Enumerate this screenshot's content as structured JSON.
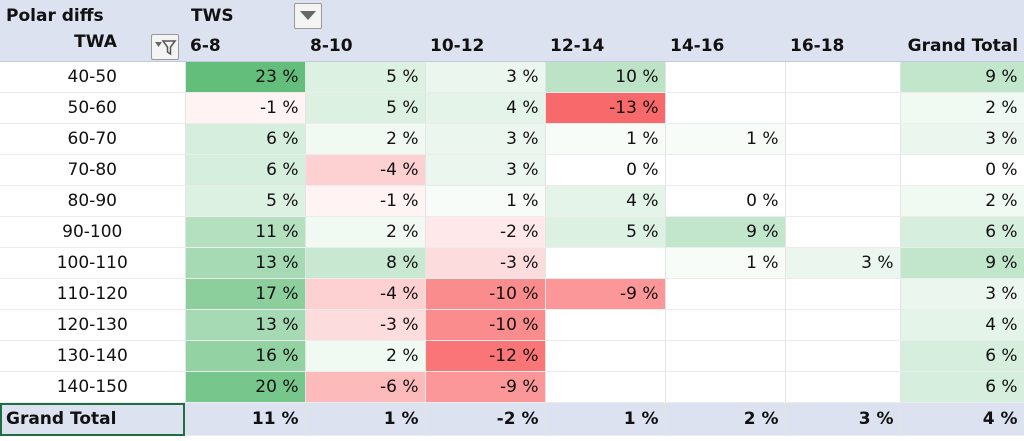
{
  "header": {
    "title": "Polar diffs",
    "column_field": "TWS",
    "row_field": "TWA"
  },
  "table": {
    "columns": [
      "6-8",
      "8-10",
      "10-12",
      "12-14",
      "14-16",
      "16-18",
      "Grand Total"
    ],
    "rows": [
      [
        "40-50",
        "23 %",
        "5 %",
        "3 %",
        "10 %",
        null,
        null,
        "9 %"
      ],
      [
        "50-60",
        "-1 %",
        "5 %",
        "4 %",
        "-13 %",
        null,
        null,
        "2 %"
      ],
      [
        "60-70",
        "6 %",
        "2 %",
        "3 %",
        "1 %",
        "1 %",
        null,
        "3 %"
      ],
      [
        "70-80",
        "6 %",
        "-4 %",
        "3 %",
        "0 %",
        null,
        null,
        "0 %"
      ],
      [
        "80-90",
        "5 %",
        "-1 %",
        "1 %",
        "4 %",
        "0 %",
        null,
        "2 %"
      ],
      [
        "90-100",
        "11 %",
        "2 %",
        "-2 %",
        "5 %",
        "9 %",
        null,
        "6 %"
      ],
      [
        "100-110",
        "13 %",
        "8 %",
        "-3 %",
        null,
        "1 %",
        "3 %",
        "9 %"
      ],
      [
        "110-120",
        "17 %",
        "-4 %",
        "-10 %",
        "-9 %",
        null,
        null,
        "3 %"
      ],
      [
        "120-130",
        "13 %",
        "-3 %",
        "-10 %",
        null,
        null,
        null,
        "4 %"
      ],
      [
        "130-140",
        "16 %",
        "2 %",
        "-12 %",
        null,
        null,
        null,
        "6 %"
      ],
      [
        "140-150",
        "20 %",
        "-6 %",
        "-9 %",
        null,
        null,
        null,
        "6 %"
      ]
    ],
    "total": [
      "Grand Total",
      "11 %",
      "1 %",
      "-2 %",
      "1 %",
      "2 %",
      "3 %",
      "4 %"
    ]
  }
}
